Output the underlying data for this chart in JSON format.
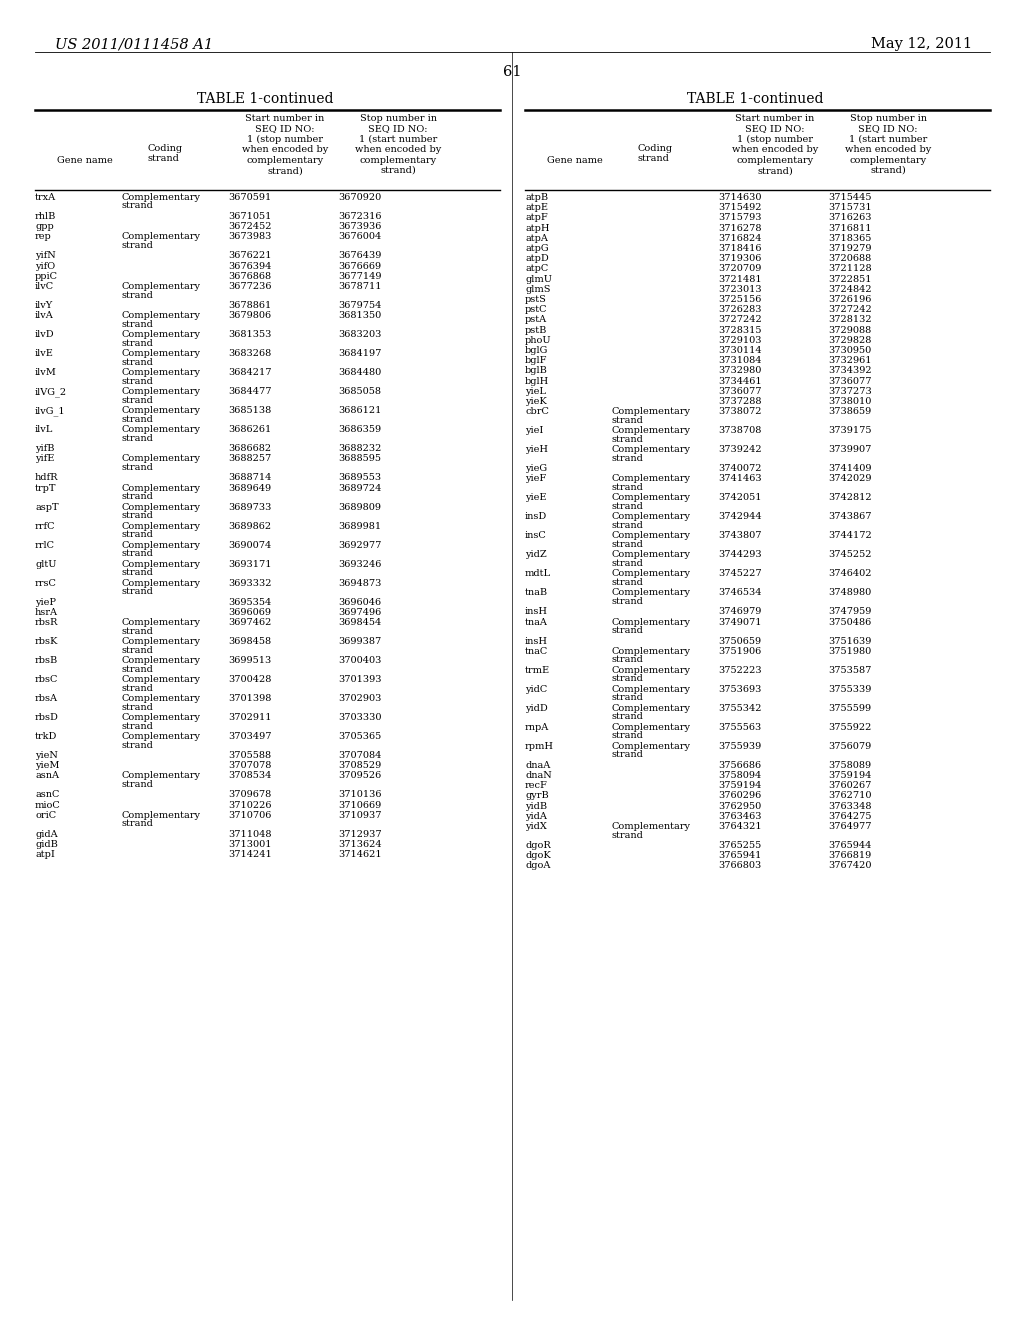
{
  "header_left": "US 2011/0111458 A1",
  "header_right": "May 12, 2011",
  "page_number": "61",
  "table_title": "TABLE 1-continued",
  "left_table_data": [
    [
      "trxA",
      "Complementary\nstrand",
      "3670591",
      "3670920"
    ],
    [
      "rhlB",
      "",
      "3671051",
      "3672316"
    ],
    [
      "gpp",
      "",
      "3672452",
      "3673936"
    ],
    [
      "rep",
      "Complementary\nstrand",
      "3673983",
      "3676004"
    ],
    [
      "yifN",
      "",
      "3676221",
      "3676439"
    ],
    [
      "yifO",
      "",
      "3676394",
      "3676669"
    ],
    [
      "ppiC",
      "",
      "3676868",
      "3677149"
    ],
    [
      "ilvC",
      "Complementary\nstrand",
      "3677236",
      "3678711"
    ],
    [
      "ilvY",
      "",
      "3678861",
      "3679754"
    ],
    [
      "ilvA",
      "Complementary\nstrand",
      "3679806",
      "3681350"
    ],
    [
      "ilvD",
      "Complementary\nstrand",
      "3681353",
      "3683203"
    ],
    [
      "ilvE",
      "Complementary\nstrand",
      "3683268",
      "3684197"
    ],
    [
      "ilvM",
      "Complementary\nstrand",
      "3684217",
      "3684480"
    ],
    [
      "ilVG_2",
      "Complementary\nstrand",
      "3684477",
      "3685058"
    ],
    [
      "ilvG_1",
      "Complementary\nstrand",
      "3685138",
      "3686121"
    ],
    [
      "ilvL",
      "Complementary\nstrand",
      "3686261",
      "3686359"
    ],
    [
      "yifB",
      "",
      "3686682",
      "3688232"
    ],
    [
      "yifE",
      "Complementary\nstrand",
      "3688257",
      "3688595"
    ],
    [
      "hdfR",
      "",
      "3688714",
      "3689553"
    ],
    [
      "trpT",
      "Complementary\nstrand",
      "3689649",
      "3689724"
    ],
    [
      "aspT",
      "Complementary\nstrand",
      "3689733",
      "3689809"
    ],
    [
      "rrfC",
      "Complementary\nstrand",
      "3689862",
      "3689981"
    ],
    [
      "rrlC",
      "Complementary\nstrand",
      "3690074",
      "3692977"
    ],
    [
      "gltU",
      "Complementary\nstrand",
      "3693171",
      "3693246"
    ],
    [
      "rrsC",
      "Complementary\nstrand",
      "3693332",
      "3694873"
    ],
    [
      "yieP",
      "",
      "3695354",
      "3696046"
    ],
    [
      "hsrA",
      "",
      "3696069",
      "3697496"
    ],
    [
      "rbsR",
      "Complementary\nstrand",
      "3697462",
      "3698454"
    ],
    [
      "rbsK",
      "Complementary\nstrand",
      "3698458",
      "3699387"
    ],
    [
      "rbsB",
      "Complementary\nstrand",
      "3699513",
      "3700403"
    ],
    [
      "rbsC",
      "Complementary\nstrand",
      "3700428",
      "3701393"
    ],
    [
      "rbsA",
      "Complementary\nstrand",
      "3701398",
      "3702903"
    ],
    [
      "rbsD",
      "Complementary\nstrand",
      "3702911",
      "3703330"
    ],
    [
      "trkD",
      "Complementary\nstrand",
      "3703497",
      "3705365"
    ],
    [
      "yieN",
      "",
      "3705588",
      "3707084"
    ],
    [
      "yieM",
      "",
      "3707078",
      "3708529"
    ],
    [
      "asnA",
      "Complementary\nstrand",
      "3708534",
      "3709526"
    ],
    [
      "asnC",
      "",
      "3709678",
      "3710136"
    ],
    [
      "mioC",
      "",
      "3710226",
      "3710669"
    ],
    [
      "oriC",
      "Complementary\nstrand",
      "3710706",
      "3710937"
    ],
    [
      "gidA",
      "",
      "3711048",
      "3712937"
    ],
    [
      "gidB",
      "",
      "3713001",
      "3713624"
    ],
    [
      "atpI",
      "",
      "3714241",
      "3714621"
    ]
  ],
  "right_table_data": [
    [
      "atpB",
      "",
      "3714630",
      "3715445"
    ],
    [
      "atpE",
      "",
      "3715492",
      "3715731"
    ],
    [
      "atpF",
      "",
      "3715793",
      "3716263"
    ],
    [
      "atpH",
      "",
      "3716278",
      "3716811"
    ],
    [
      "atpA",
      "",
      "3716824",
      "3718365"
    ],
    [
      "atpG",
      "",
      "3718416",
      "3719279"
    ],
    [
      "atpD",
      "",
      "3719306",
      "3720688"
    ],
    [
      "atpC",
      "",
      "3720709",
      "3721128"
    ],
    [
      "glmU",
      "",
      "3721481",
      "3722851"
    ],
    [
      "glmS",
      "",
      "3723013",
      "3724842"
    ],
    [
      "pstS",
      "",
      "3725156",
      "3726196"
    ],
    [
      "pstC",
      "",
      "3726283",
      "3727242"
    ],
    [
      "pstA",
      "",
      "3727242",
      "3728132"
    ],
    [
      "pstB",
      "",
      "3728315",
      "3729088"
    ],
    [
      "phoU",
      "",
      "3729103",
      "3729828"
    ],
    [
      "bglG",
      "",
      "3730114",
      "3730950"
    ],
    [
      "bglF",
      "",
      "3731084",
      "3732961"
    ],
    [
      "bglB",
      "",
      "3732980",
      "3734392"
    ],
    [
      "bglH",
      "",
      "3734461",
      "3736077"
    ],
    [
      "yieL",
      "",
      "3736077",
      "3737273"
    ],
    [
      "yieK",
      "",
      "3737288",
      "3738010"
    ],
    [
      "cbrC",
      "Complementary\nstrand",
      "3738072",
      "3738659"
    ],
    [
      "yieI",
      "Complementary\nstrand",
      "3738708",
      "3739175"
    ],
    [
      "yieH",
      "Complementary\nstrand",
      "3739242",
      "3739907"
    ],
    [
      "yieG",
      "",
      "3740072",
      "3741409"
    ],
    [
      "yieF",
      "Complementary\nstrand",
      "3741463",
      "3742029"
    ],
    [
      "yieE",
      "Complementary\nstrand",
      "3742051",
      "3742812"
    ],
    [
      "insD",
      "Complementary\nstrand",
      "3742944",
      "3743867"
    ],
    [
      "insC",
      "Complementary\nstrand",
      "3743807",
      "3744172"
    ],
    [
      "yidZ",
      "Complementary\nstrand",
      "3744293",
      "3745252"
    ],
    [
      "mdtL",
      "Complementary\nstrand",
      "3745227",
      "3746402"
    ],
    [
      "tnaB",
      "Complementary\nstrand",
      "3746534",
      "3748980"
    ],
    [
      "insH",
      "",
      "3746979",
      "3747959"
    ],
    [
      "tnaA",
      "Complementary\nstrand",
      "3749071",
      "3750486"
    ],
    [
      "insH",
      "",
      "3750659",
      "3751639"
    ],
    [
      "tnaC",
      "Complementary\nstrand",
      "3751906",
      "3751980"
    ],
    [
      "trmE",
      "Complementary\nstrand",
      "3752223",
      "3753587"
    ],
    [
      "yidC",
      "Complementary\nstrand",
      "3753693",
      "3755339"
    ],
    [
      "yidD",
      "Complementary\nstrand",
      "3755342",
      "3755599"
    ],
    [
      "rnpA",
      "Complementary\nstrand",
      "3755563",
      "3755922"
    ],
    [
      "rpmH",
      "Complementary\nstrand",
      "3755939",
      "3756079"
    ],
    [
      "dnaA",
      "",
      "3756686",
      "3758089"
    ],
    [
      "dnaN",
      "",
      "3758094",
      "3759194"
    ],
    [
      "recF",
      "",
      "3759194",
      "3760267"
    ],
    [
      "gyrB",
      "",
      "3760296",
      "3762710"
    ],
    [
      "yidB",
      "",
      "3762950",
      "3763348"
    ],
    [
      "yidA",
      "",
      "3763463",
      "3764275"
    ],
    [
      "yidX",
      "Complementary\nstrand",
      "3764321",
      "3764977"
    ],
    [
      "dgoR",
      "",
      "3765255",
      "3765944"
    ],
    [
      "dgoK",
      "",
      "3765941",
      "3766819"
    ],
    [
      "dgoA",
      "",
      "3766803",
      "3767420"
    ]
  ],
  "bg_color": "#ffffff",
  "text_color": "#000000"
}
